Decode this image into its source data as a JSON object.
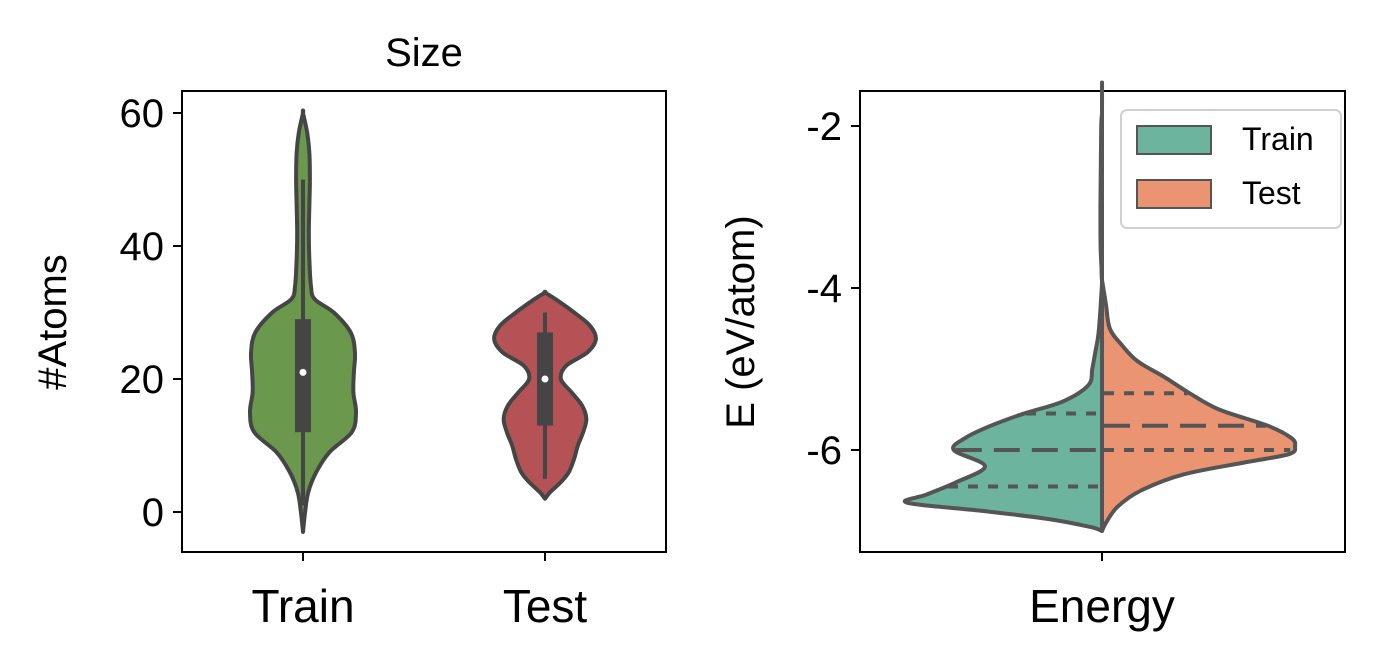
{
  "chart_data": [
    {
      "type": "violin",
      "title": "Size",
      "xlabel": "",
      "ylabel": "#Atoms",
      "ylim": [
        -6,
        63
      ],
      "yticks": [
        0,
        20,
        40,
        60
      ],
      "categories": [
        "Train",
        "Test"
      ],
      "colors": [
        "#6a994e",
        "#b55256"
      ],
      "series": [
        {
          "category": "Train",
          "range": [
            -3,
            60
          ],
          "whisker": [
            1,
            50
          ],
          "q1": 12,
          "median": 21,
          "q3": 29,
          "density": [
            [
              -3,
              0.0
            ],
            [
              0,
              0.04
            ],
            [
              3,
              0.1
            ],
            [
              6,
              0.25
            ],
            [
              9,
              0.5
            ],
            [
              12,
              0.92
            ],
            [
              15,
              1.0
            ],
            [
              18,
              0.95
            ],
            [
              21,
              0.96
            ],
            [
              24,
              0.98
            ],
            [
              27,
              0.9
            ],
            [
              30,
              0.58
            ],
            [
              32,
              0.22
            ],
            [
              34,
              0.15
            ],
            [
              38,
              0.12
            ],
            [
              42,
              0.11
            ],
            [
              46,
              0.12
            ],
            [
              50,
              0.13
            ],
            [
              54,
              0.12
            ],
            [
              57,
              0.08
            ],
            [
              60,
              0.0
            ]
          ]
        },
        {
          "category": "Test",
          "range": [
            2,
            33
          ],
          "whisker": [
            5,
            30
          ],
          "q1": 13,
          "median": 20,
          "q3": 27,
          "density": [
            [
              2,
              0.0
            ],
            [
              3,
              0.1
            ],
            [
              4.5,
              0.3
            ],
            [
              6,
              0.45
            ],
            [
              8,
              0.55
            ],
            [
              10,
              0.62
            ],
            [
              12,
              0.72
            ],
            [
              14,
              0.78
            ],
            [
              16,
              0.7
            ],
            [
              18,
              0.5
            ],
            [
              20,
              0.3
            ],
            [
              22,
              0.4
            ],
            [
              24,
              0.8
            ],
            [
              26,
              0.96
            ],
            [
              28,
              0.85
            ],
            [
              30,
              0.55
            ],
            [
              32,
              0.2
            ],
            [
              33,
              0.0
            ]
          ]
        }
      ]
    },
    {
      "type": "violin-split",
      "title": "",
      "xlabel": "",
      "ylabel": "E (eV/atom)",
      "ylim": [
        -7.3,
        -1.6
      ],
      "yticks": [
        -2,
        -4,
        -6
      ],
      "categories": [
        "Energy"
      ],
      "legend": {
        "position": "top-right",
        "entries": [
          "Train",
          "Test"
        ]
      },
      "colors": [
        "#6cb49e",
        "#eb9472"
      ],
      "series": [
        {
          "name": "Train",
          "side": "left",
          "range": [
            -7.0,
            -1.85
          ],
          "quartiles": [
            -6.45,
            -6.0,
            -5.55
          ],
          "density": [
            [
              -7.0,
              0.0
            ],
            [
              -6.95,
              0.06
            ],
            [
              -6.85,
              0.28
            ],
            [
              -6.75,
              0.62
            ],
            [
              -6.65,
              1.0
            ],
            [
              -6.55,
              0.9
            ],
            [
              -6.4,
              0.75
            ],
            [
              -6.2,
              0.6
            ],
            [
              -6.0,
              0.76
            ],
            [
              -5.85,
              0.7
            ],
            [
              -5.7,
              0.57
            ],
            [
              -5.55,
              0.4
            ],
            [
              -5.4,
              0.2
            ],
            [
              -5.2,
              0.07
            ],
            [
              -5.0,
              0.05
            ],
            [
              -4.8,
              0.035
            ],
            [
              -4.6,
              0.02
            ],
            [
              -4.4,
              0.012
            ],
            [
              -4.1,
              0.004
            ],
            [
              -3.9,
              0.0
            ],
            [
              -3.5,
              0.007
            ],
            [
              -3.0,
              0.008
            ],
            [
              -2.5,
              0.006
            ],
            [
              -2.0,
              0.004
            ],
            [
              -1.85,
              0.0
            ]
          ]
        },
        {
          "name": "Test",
          "side": "right",
          "range": [
            -7.0,
            -3.9
          ],
          "quartiles": [
            -6.0,
            -5.7,
            -5.3
          ],
          "density": [
            [
              -7.0,
              0.0
            ],
            [
              -6.9,
              0.02
            ],
            [
              -6.7,
              0.08
            ],
            [
              -6.5,
              0.2
            ],
            [
              -6.3,
              0.42
            ],
            [
              -6.15,
              0.74
            ],
            [
              -6.05,
              0.96
            ],
            [
              -5.95,
              0.99
            ],
            [
              -5.85,
              0.97
            ],
            [
              -5.7,
              0.85
            ],
            [
              -5.5,
              0.6
            ],
            [
              -5.3,
              0.45
            ],
            [
              -5.1,
              0.32
            ],
            [
              -4.9,
              0.18
            ],
            [
              -4.7,
              0.1
            ],
            [
              -4.5,
              0.04
            ],
            [
              -4.2,
              0.02
            ],
            [
              -3.9,
              0.0
            ]
          ]
        }
      ]
    }
  ]
}
